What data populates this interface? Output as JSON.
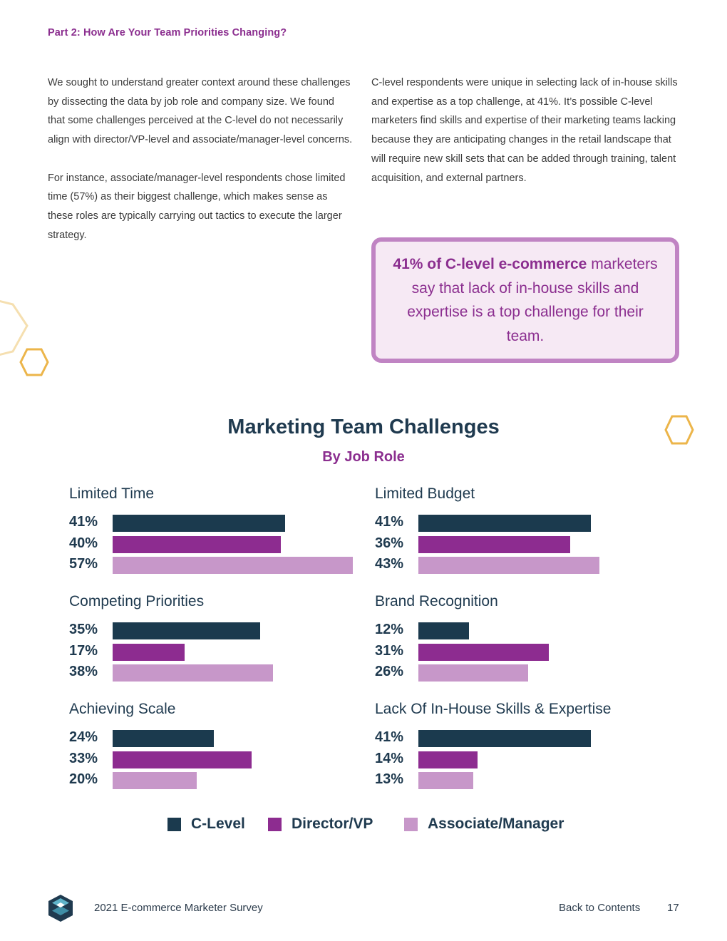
{
  "header": {
    "part_title": "Part 2: How Are Your Team Priorities Changing?"
  },
  "body": {
    "left_column": [
      "We sought to understand greater context around these challenges by dissecting the data by job role and company size. We found that some challenges perceived at the C-level do not necessarily align with director/VP-level and associate/manager-level concerns.",
      "For instance, associate/manager-level respondents chose limited time (57%) as their biggest challenge, which makes sense as these roles are typically carrying out tactics to execute the larger strategy."
    ],
    "right_column": [
      "C-level respondents were unique in selecting lack of in-house skills and expertise as a top challenge, at 41%. It’s possible C-level marketers find skills and expertise of their marketing teams lacking because they are anticipating changes in the retail landscape that will require new skill sets that can be added through training, talent acquisition, and external partners."
    ]
  },
  "callout": {
    "highlight": "41% of C-level e-commerce",
    "text": "marketers say that lack of in-house skills and expertise is a top challenge for their team."
  },
  "chart_data": {
    "type": "bar",
    "orientation": "horizontal",
    "title": "Marketing Team Challenges",
    "subtitle": "By Job Role",
    "xlim": [
      0,
      57
    ],
    "legend": "bottom-center",
    "series": [
      {
        "name": "C-Level",
        "color": "#1b3a4e"
      },
      {
        "name": "Director/VP",
        "color": "#8d2c90"
      },
      {
        "name": "Associate/Manager",
        "color": "#c797c9"
      }
    ],
    "panels": [
      {
        "title": "Limited Time",
        "values": [
          41,
          40,
          57
        ],
        "labels": [
          "41%",
          "40%",
          "57%"
        ]
      },
      {
        "title": "Limited Budget",
        "values": [
          41,
          36,
          43
        ],
        "labels": [
          "41%",
          "36%",
          "43%"
        ]
      },
      {
        "title": "Competing Priorities",
        "values": [
          35,
          17,
          38
        ],
        "labels": [
          "35%",
          "17%",
          "38%"
        ]
      },
      {
        "title": "Brand Recognition",
        "values": [
          12,
          31,
          26
        ],
        "labels": [
          "12%",
          "31%",
          "26%"
        ]
      },
      {
        "title": "Achieving Scale",
        "values": [
          24,
          33,
          20
        ],
        "labels": [
          "24%",
          "33%",
          "20%"
        ]
      },
      {
        "title": "Lack Of In-House Skills & Expertise",
        "values": [
          41,
          14,
          13
        ],
        "labels": [
          "41%",
          "14%",
          "13%"
        ]
      }
    ]
  },
  "footer": {
    "survey_title": "2021 E-commerce Marketer Survey",
    "back_link": "Back to Contents",
    "page_number": "17",
    "logo_icon": "company-logo-icon"
  }
}
